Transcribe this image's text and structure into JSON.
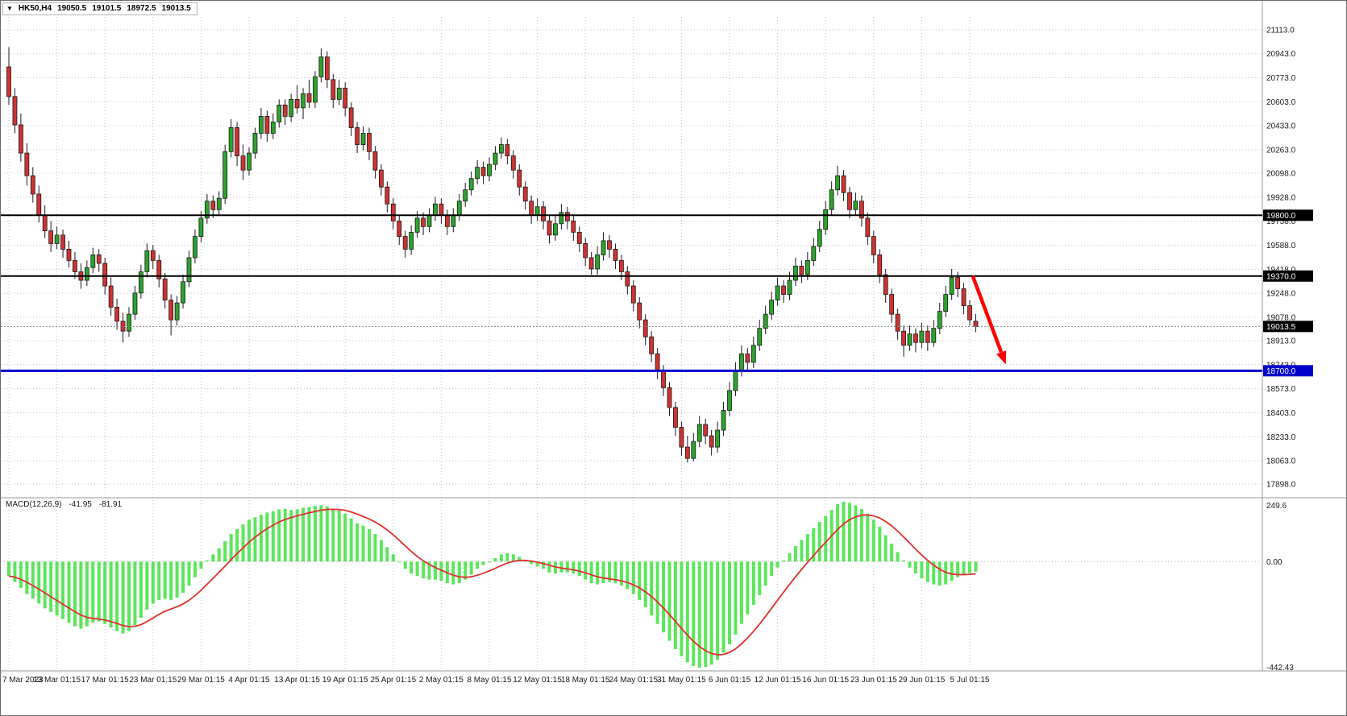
{
  "title_bar": {
    "dropdown_icon": "▼",
    "symbol": "HK50,H4",
    "open": "19050.5",
    "high": "19101.5",
    "low": "18972.5",
    "close": "19013.5"
  },
  "indicator": {
    "label": "MACD(12,26,9)",
    "macd_value": "-41.95",
    "signal_value": "-81.91"
  },
  "chart_data": {
    "type": "candlestick",
    "symbol": "HK50",
    "timeframe": "H4",
    "price_axis": {
      "min": 17830,
      "max": 21175,
      "ticks": [
        21113,
        20943,
        20773,
        20603,
        20433,
        20263,
        20098,
        19928,
        19758,
        19588,
        19418,
        19248,
        19078,
        18913,
        18743,
        18573,
        18403,
        18233,
        18063,
        17898
      ]
    },
    "time_axis": {
      "labels": [
        "7 Mar 2023",
        "13 Mar 01:15",
        "17 Mar 01:15",
        "23 Mar 01:15",
        "29 Mar 01:15",
        "4 Apr 01:15",
        "13 Apr 01:15",
        "19 Apr 01:15",
        "25 Apr 01:15",
        "2 May 01:15",
        "8 May 01:15",
        "12 May 01:15",
        "18 May 01:15",
        "24 May 01:15",
        "31 May 01:15",
        "6 Jun 01:15",
        "12 Jun 01:15",
        "16 Jun 01:15",
        "23 Jun 01:15",
        "29 Jun 01:15",
        "5 Jul 01:15"
      ],
      "bars_per_label": 8
    },
    "levels": [
      {
        "price": 19800.0,
        "label": "19800.0",
        "color": "#000000",
        "width": 2
      },
      {
        "price": 19370.0,
        "label": "19370.0",
        "color": "#000000",
        "width": 2
      },
      {
        "price": 18700.0,
        "label": "18700.0",
        "color": "#0000cc",
        "width": 3
      }
    ],
    "current_price": {
      "price": 19013.5,
      "label": "19013.5",
      "color": "#000000"
    },
    "annotation_arrow": {
      "color": "#ff0000",
      "from": {
        "bar": 160.5,
        "price": 19370
      },
      "to": {
        "bar": 166,
        "price": 18745
      }
    },
    "colors": {
      "up": "#2ca32c",
      "down": "#d03232",
      "outline": "#1a1a1a",
      "grid": "#c4c4c4",
      "macd_hist": "#5ce65c",
      "macd_signal": "#e03030"
    },
    "candles": [
      [
        20850,
        20990,
        20580,
        20640
      ],
      [
        20640,
        20700,
        20380,
        20440
      ],
      [
        20440,
        20520,
        20180,
        20240
      ],
      [
        20240,
        20310,
        20010,
        20080
      ],
      [
        20080,
        20140,
        19890,
        19950
      ],
      [
        19950,
        20010,
        19750,
        19800
      ],
      [
        19800,
        19870,
        19640,
        19690
      ],
      [
        19690,
        19760,
        19540,
        19600
      ],
      [
        19600,
        19720,
        19560,
        19660
      ],
      [
        19660,
        19700,
        19500,
        19560
      ],
      [
        19560,
        19620,
        19430,
        19480
      ],
      [
        19480,
        19540,
        19350,
        19400
      ],
      [
        19400,
        19460,
        19280,
        19340
      ],
      [
        19340,
        19480,
        19300,
        19430
      ],
      [
        19430,
        19570,
        19390,
        19520
      ],
      [
        19520,
        19560,
        19400,
        19460
      ],
      [
        19460,
        19500,
        19240,
        19300
      ],
      [
        19300,
        19360,
        19090,
        19150
      ],
      [
        19150,
        19210,
        18990,
        19050
      ],
      [
        19050,
        19110,
        18900,
        18980
      ],
      [
        18980,
        19150,
        18940,
        19100
      ],
      [
        19100,
        19300,
        19060,
        19250
      ],
      [
        19250,
        19450,
        19210,
        19400
      ],
      [
        19400,
        19600,
        19360,
        19550
      ],
      [
        19550,
        19590,
        19420,
        19480
      ],
      [
        19480,
        19520,
        19290,
        19350
      ],
      [
        19350,
        19390,
        19140,
        19200
      ],
      [
        19200,
        19240,
        18950,
        19060
      ],
      [
        19060,
        19230,
        19020,
        19180
      ],
      [
        19180,
        19380,
        19140,
        19330
      ],
      [
        19330,
        19550,
        19290,
        19500
      ],
      [
        19500,
        19700,
        19460,
        19650
      ],
      [
        19650,
        19830,
        19610,
        19780
      ],
      [
        19780,
        19950,
        19740,
        19900
      ],
      [
        19900,
        19940,
        19780,
        19840
      ],
      [
        19840,
        19970,
        19800,
        19920
      ],
      [
        19920,
        20300,
        19880,
        20250
      ],
      [
        20250,
        20480,
        20210,
        20420
      ],
      [
        20420,
        20460,
        20150,
        20220
      ],
      [
        20220,
        20300,
        20050,
        20120
      ],
      [
        20120,
        20280,
        20080,
        20240
      ],
      [
        20240,
        20420,
        20200,
        20380
      ],
      [
        20380,
        20560,
        20340,
        20500
      ],
      [
        20500,
        20540,
        20320,
        20380
      ],
      [
        20380,
        20520,
        20340,
        20460
      ],
      [
        20460,
        20620,
        20420,
        20580
      ],
      [
        20580,
        20620,
        20440,
        20500
      ],
      [
        20500,
        20660,
        20460,
        20620
      ],
      [
        20620,
        20720,
        20520,
        20560
      ],
      [
        20560,
        20700,
        20480,
        20660
      ],
      [
        20660,
        20760,
        20560,
        20600
      ],
      [
        20600,
        20820,
        20560,
        20780
      ],
      [
        20780,
        20980,
        20740,
        20920
      ],
      [
        20920,
        20960,
        20700,
        20760
      ],
      [
        20760,
        20800,
        20560,
        20620
      ],
      [
        20620,
        20760,
        20580,
        20700
      ],
      [
        20700,
        20740,
        20500,
        20560
      ],
      [
        20560,
        20600,
        20360,
        20420
      ],
      [
        20420,
        20460,
        20240,
        20300
      ],
      [
        20300,
        20430,
        20260,
        20380
      ],
      [
        20380,
        20420,
        20190,
        20250
      ],
      [
        20250,
        20290,
        20060,
        20120
      ],
      [
        20120,
        20160,
        19940,
        20000
      ],
      [
        20000,
        20040,
        19820,
        19880
      ],
      [
        19880,
        19920,
        19700,
        19760
      ],
      [
        19760,
        19800,
        19590,
        19650
      ],
      [
        19650,
        19690,
        19500,
        19560
      ],
      [
        19560,
        19730,
        19520,
        19680
      ],
      [
        19680,
        19830,
        19640,
        19780
      ],
      [
        19780,
        19820,
        19660,
        19720
      ],
      [
        19720,
        19850,
        19680,
        19800
      ],
      [
        19800,
        19930,
        19760,
        19880
      ],
      [
        19880,
        19920,
        19740,
        19800
      ],
      [
        19800,
        19840,
        19660,
        19720
      ],
      [
        19720,
        19850,
        19680,
        19800
      ],
      [
        19800,
        19950,
        19760,
        19900
      ],
      [
        19900,
        20030,
        19860,
        19980
      ],
      [
        19980,
        20110,
        19940,
        20060
      ],
      [
        20060,
        20190,
        20020,
        20140
      ],
      [
        20140,
        20180,
        20020,
        20080
      ],
      [
        20080,
        20210,
        20040,
        20160
      ],
      [
        20160,
        20290,
        20120,
        20240
      ],
      [
        20240,
        20350,
        20200,
        20300
      ],
      [
        20300,
        20340,
        20160,
        20220
      ],
      [
        20220,
        20260,
        20060,
        20120
      ],
      [
        20120,
        20160,
        19940,
        20000
      ],
      [
        20000,
        20040,
        19840,
        19900
      ],
      [
        19900,
        19940,
        19740,
        19800
      ],
      [
        19800,
        19920,
        19760,
        19860
      ],
      [
        19860,
        19900,
        19700,
        19760
      ],
      [
        19760,
        19800,
        19600,
        19660
      ],
      [
        19660,
        19800,
        19620,
        19740
      ],
      [
        19740,
        19880,
        19700,
        19820
      ],
      [
        19820,
        19860,
        19700,
        19760
      ],
      [
        19760,
        19800,
        19620,
        19680
      ],
      [
        19680,
        19720,
        19540,
        19600
      ],
      [
        19600,
        19640,
        19440,
        19500
      ],
      [
        19500,
        19540,
        19380,
        19420
      ],
      [
        19420,
        19580,
        19380,
        19520
      ],
      [
        19520,
        19680,
        19480,
        19620
      ],
      [
        19620,
        19660,
        19500,
        19560
      ],
      [
        19560,
        19600,
        19420,
        19480
      ],
      [
        19480,
        19520,
        19340,
        19400
      ],
      [
        19400,
        19440,
        19240,
        19300
      ],
      [
        19300,
        19340,
        19120,
        19180
      ],
      [
        19180,
        19220,
        19000,
        19060
      ],
      [
        19060,
        19100,
        18880,
        18940
      ],
      [
        18940,
        18980,
        18760,
        18820
      ],
      [
        18820,
        18860,
        18640,
        18700
      ],
      [
        18700,
        18740,
        18520,
        18580
      ],
      [
        18580,
        18620,
        18380,
        18440
      ],
      [
        18440,
        18480,
        18240,
        18300
      ],
      [
        18300,
        18340,
        18100,
        18160
      ],
      [
        18160,
        18240,
        18050,
        18080
      ],
      [
        18080,
        18260,
        18060,
        18200
      ],
      [
        18200,
        18380,
        18160,
        18320
      ],
      [
        18320,
        18360,
        18180,
        18240
      ],
      [
        18240,
        18280,
        18100,
        18160
      ],
      [
        18160,
        18340,
        18120,
        18280
      ],
      [
        18280,
        18480,
        18240,
        18420
      ],
      [
        18420,
        18620,
        18380,
        18560
      ],
      [
        18560,
        18760,
        18520,
        18700
      ],
      [
        18700,
        18880,
        18660,
        18820
      ],
      [
        18820,
        18860,
        18700,
        18760
      ],
      [
        18760,
        18940,
        18720,
        18880
      ],
      [
        18880,
        19060,
        18840,
        19000
      ],
      [
        19000,
        19160,
        18960,
        19100
      ],
      [
        19100,
        19260,
        19060,
        19200
      ],
      [
        19200,
        19360,
        19160,
        19300
      ],
      [
        19300,
        19340,
        19180,
        19240
      ],
      [
        19240,
        19400,
        19200,
        19340
      ],
      [
        19340,
        19500,
        19300,
        19440
      ],
      [
        19440,
        19480,
        19320,
        19380
      ],
      [
        19380,
        19540,
        19340,
        19480
      ],
      [
        19480,
        19640,
        19440,
        19580
      ],
      [
        19580,
        19760,
        19540,
        19700
      ],
      [
        19700,
        19900,
        19660,
        19840
      ],
      [
        19840,
        20040,
        19800,
        19980
      ],
      [
        19980,
        20150,
        19940,
        20080
      ],
      [
        20080,
        20120,
        19900,
        19960
      ],
      [
        19960,
        20000,
        19780,
        19840
      ],
      [
        19840,
        19960,
        19800,
        19900
      ],
      [
        19900,
        19940,
        19720,
        19780
      ],
      [
        19780,
        19820,
        19590,
        19650
      ],
      [
        19650,
        19690,
        19460,
        19520
      ],
      [
        19520,
        19560,
        19320,
        19380
      ],
      [
        19380,
        19420,
        19180,
        19240
      ],
      [
        19240,
        19280,
        19040,
        19100
      ],
      [
        19100,
        19140,
        18920,
        18980
      ],
      [
        18980,
        19020,
        18800,
        18880
      ],
      [
        18880,
        19020,
        18840,
        18960
      ],
      [
        18960,
        19000,
        18830,
        18900
      ],
      [
        18900,
        19040,
        18860,
        18980
      ],
      [
        18980,
        19020,
        18840,
        18900
      ],
      [
        18900,
        19060,
        18870,
        19000
      ],
      [
        19000,
        19180,
        18960,
        19120
      ],
      [
        19120,
        19300,
        19080,
        19240
      ],
      [
        19240,
        19420,
        19200,
        19360
      ],
      [
        19360,
        19400,
        19220,
        19280
      ],
      [
        19280,
        19320,
        19100,
        19160
      ],
      [
        19160,
        19200,
        19020,
        19060
      ],
      [
        19050.5,
        19101.5,
        18972.5,
        19013.5
      ]
    ],
    "macd": {
      "name": "MACD(12,26,9)",
      "signal_period": 9,
      "axis": {
        "max": 249.6,
        "min": -442.43,
        "max_label": "249.6",
        "zero_label": "0.00",
        "min_label": "-442.43"
      },
      "histogram": [
        -60,
        -85,
        -110,
        -135,
        -155,
        -175,
        -195,
        -210,
        -225,
        -240,
        -255,
        -270,
        -280,
        -270,
        -255,
        -250,
        -260,
        -275,
        -290,
        -300,
        -290,
        -265,
        -235,
        -200,
        -175,
        -160,
        -155,
        -160,
        -150,
        -130,
        -100,
        -65,
        -30,
        5,
        30,
        55,
        85,
        115,
        135,
        155,
        175,
        185,
        195,
        205,
        210,
        218,
        220,
        215,
        218,
        225,
        228,
        232,
        235,
        230,
        220,
        215,
        200,
        180,
        160,
        150,
        135,
        115,
        90,
        60,
        30,
        0,
        -30,
        -50,
        -60,
        -70,
        -75,
        -75,
        -80,
        -90,
        -95,
        -90,
        -75,
        -55,
        -30,
        -15,
        0,
        15,
        30,
        35,
        30,
        20,
        5,
        -10,
        -20,
        -30,
        -45,
        -50,
        -45,
        -45,
        -50,
        -60,
        -75,
        -90,
        -95,
        -90,
        -85,
        -90,
        -100,
        -115,
        -135,
        -160,
        -190,
        -225,
        -260,
        -295,
        -330,
        -365,
        -395,
        -420,
        -435,
        -442,
        -440,
        -430,
        -410,
        -380,
        -345,
        -305,
        -260,
        -220,
        -180,
        -140,
        -100,
        -60,
        -25,
        5,
        35,
        65,
        90,
        115,
        140,
        165,
        190,
        215,
        240,
        250,
        245,
        235,
        220,
        200,
        175,
        145,
        110,
        75,
        40,
        5,
        -25,
        -50,
        -70,
        -85,
        -95,
        -100,
        -95,
        -80,
        -65,
        -55,
        -48,
        -41.95
      ]
    }
  }
}
